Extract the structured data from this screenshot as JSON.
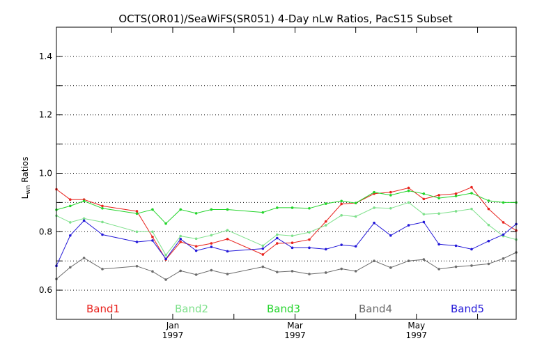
{
  "chart_data": {
    "type": "line",
    "title": "OCTS(OR01)/SeaWiFS(SR051) 4-Day nLw Ratios, PacS15 Subset",
    "ylabel_main": "L",
    "ylabel_sub": "wn",
    "ylabel_rest": " Ratios",
    "xlabel": "",
    "ylim": [
      0.5,
      1.5
    ],
    "xlim": [
      0,
      100
    ],
    "y_ticks": [
      0.6,
      0.8,
      1.0,
      1.2,
      1.4
    ],
    "y_tick_labels": [
      "0.6",
      "0.8",
      "1.0",
      "1.2",
      "1.4"
    ],
    "y_grid": [
      0.6,
      0.7,
      0.8,
      0.9,
      1.0,
      1.1,
      1.2,
      1.3,
      1.4
    ],
    "grid": true,
    "x_labels": [
      {
        "x": 25.3,
        "month": "Jan",
        "year": "1997"
      },
      {
        "x": 51.9,
        "month": "Mar",
        "year": "1997"
      },
      {
        "x": 78.3,
        "month": "May",
        "year": "1997"
      }
    ],
    "x_minor_ticks": [
      12.0,
      25.3,
      38.6,
      51.9,
      65.1,
      78.3,
      91.6
    ],
    "x": [
      0,
      3,
      6,
      10,
      17.5,
      20.9,
      23.8,
      27.0,
      30.4,
      33.7,
      37.2,
      44.9,
      48.0,
      51.3,
      55.0,
      58.6,
      62.0,
      65.1,
      69.1,
      72.7,
      76.6,
      79.9,
      83.2,
      86.9,
      90.3,
      94.0,
      97.2,
      100
    ],
    "series": [
      {
        "name": "Band1",
        "color": "#e8231e",
        "values": [
          0.945,
          0.91,
          0.91,
          0.888,
          0.87,
          0.782,
          0.705,
          0.765,
          0.75,
          0.76,
          0.775,
          0.722,
          0.76,
          0.762,
          0.773,
          0.835,
          0.895,
          0.898,
          0.93,
          0.935,
          0.95,
          0.912,
          0.925,
          0.93,
          0.952,
          0.878,
          0.832,
          0.804
        ]
      },
      {
        "name": "Band2",
        "color": "#7de08a",
        "values": [
          0.855,
          0.832,
          0.845,
          0.833,
          0.8,
          0.8,
          0.72,
          0.785,
          0.776,
          0.788,
          0.805,
          0.752,
          0.79,
          0.786,
          0.798,
          0.822,
          0.856,
          0.852,
          0.882,
          0.88,
          0.9,
          0.86,
          0.862,
          0.87,
          0.878,
          0.823,
          0.785,
          0.773
        ]
      },
      {
        "name": "Band3",
        "color": "#22d42a",
        "values": [
          0.875,
          0.888,
          0.905,
          0.88,
          0.862,
          0.876,
          0.828,
          0.876,
          0.863,
          0.876,
          0.876,
          0.866,
          0.882,
          0.882,
          0.88,
          0.896,
          0.905,
          0.898,
          0.935,
          0.925,
          0.94,
          0.93,
          0.915,
          0.922,
          0.932,
          0.906,
          0.9,
          0.9
        ]
      },
      {
        "name": "Band4",
        "color": "#6b6b6b",
        "values": [
          0.638,
          0.678,
          0.71,
          0.672,
          0.682,
          0.664,
          0.636,
          0.666,
          0.653,
          0.668,
          0.655,
          0.68,
          0.662,
          0.665,
          0.655,
          0.66,
          0.673,
          0.665,
          0.7,
          0.677,
          0.7,
          0.705,
          0.672,
          0.68,
          0.684,
          0.69,
          0.708,
          0.729
        ]
      },
      {
        "name": "Band5",
        "color": "#2318d8",
        "values": [
          0.683,
          0.787,
          0.838,
          0.79,
          0.765,
          0.77,
          0.707,
          0.775,
          0.735,
          0.748,
          0.733,
          0.742,
          0.778,
          0.745,
          0.745,
          0.74,
          0.755,
          0.75,
          0.83,
          0.787,
          0.822,
          0.833,
          0.757,
          0.752,
          0.74,
          0.768,
          0.79,
          0.826
        ]
      }
    ],
    "legend_position": "bottom inside plot"
  }
}
